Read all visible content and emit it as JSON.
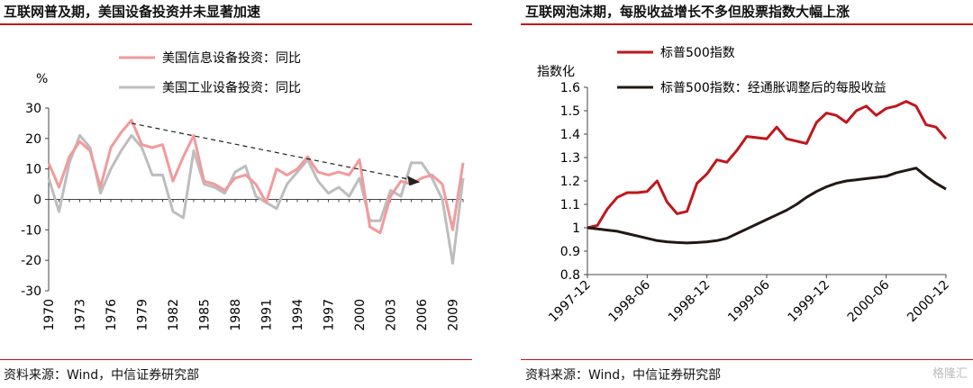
{
  "left": {
    "title": "互联网普及期，美国设备投资并未显著加速",
    "source": "资料来源：Wind，中信证券研究部"
  },
  "right": {
    "title": "互联网泡沫期，每股收益增长不多但股票指数大幅上涨",
    "source": "资料来源：Wind，中信证券研究部"
  },
  "watermark": "格隆汇",
  "colors": {
    "red": "#c0161c",
    "pink": "#f29a9c",
    "gray": "#bdbdbd",
    "dark": "#231815",
    "rule": "#c0161c"
  },
  "chart_data": [
    {
      "type": "line",
      "ylabel": "%",
      "ylim": [
        -30,
        30
      ],
      "yticks": [
        30,
        20,
        10,
        0,
        -10,
        -20,
        -30
      ],
      "xlim": [
        1970,
        2010
      ],
      "xticks": [
        "1970",
        "1973",
        "1976",
        "1979",
        "1982",
        "1985",
        "1988",
        "1991",
        "1994",
        "1997",
        "2000",
        "2003",
        "2006",
        "2009"
      ],
      "x": [
        1970,
        1971,
        1972,
        1973,
        1974,
        1975,
        1976,
        1977,
        1978,
        1979,
        1980,
        1981,
        1982,
        1983,
        1984,
        1985,
        1986,
        1987,
        1988,
        1989,
        1990,
        1991,
        1992,
        1993,
        1994,
        1995,
        1996,
        1997,
        1998,
        1999,
        2000,
        2001,
        2002,
        2003,
        2004,
        2005,
        2006,
        2007,
        2008,
        2009,
        2010
      ],
      "series": [
        {
          "name": "美国信息设备投资：同比",
          "color": "#f29a9c",
          "values": [
            12,
            4,
            14,
            19,
            16,
            4,
            17,
            22,
            26,
            18,
            17,
            18,
            6,
            14,
            21,
            6,
            5,
            3,
            7,
            8,
            5,
            -1,
            10,
            8,
            10,
            14,
            9,
            8,
            9,
            8,
            13,
            -9,
            -11,
            1,
            6,
            5,
            7,
            8,
            5,
            -10,
            12
          ]
        },
        {
          "name": "美国工业设备投资：同比",
          "color": "#bdbdbd",
          "values": [
            7,
            -4,
            12,
            21,
            17,
            2,
            10,
            16,
            21,
            17,
            8,
            8,
            -4,
            -6,
            16,
            5,
            4,
            2,
            9,
            11,
            1,
            -1,
            -3,
            5,
            9,
            13,
            6,
            2,
            4,
            1,
            7,
            -7,
            -7,
            3,
            1,
            12,
            12,
            7,
            0,
            -21,
            7
          ]
        }
      ],
      "annotation": {
        "type": "dashed-arrow",
        "from": [
          1978,
          25
        ],
        "to": [
          2005.5,
          6
        ]
      },
      "legend": "top-left"
    },
    {
      "type": "line",
      "ylabel": "指数化",
      "ylim": [
        0.8,
        1.6
      ],
      "yticks": [
        1.6,
        1.5,
        1.4,
        1.3,
        1.2,
        1.1,
        1,
        0.9,
        0.8
      ],
      "xticks": [
        "1997-12",
        "1998-06",
        "1998-12",
        "1999-06",
        "1999-12",
        "2000-06",
        "2000-12"
      ],
      "x_months": [
        "1997-12",
        "1998-01",
        "1998-02",
        "1998-03",
        "1998-04",
        "1998-05",
        "1998-06",
        "1998-07",
        "1998-08",
        "1998-09",
        "1998-10",
        "1998-11",
        "1998-12",
        "1999-01",
        "1999-02",
        "1999-03",
        "1999-04",
        "1999-05",
        "1999-06",
        "1999-07",
        "1999-08",
        "1999-09",
        "1999-10",
        "1999-11",
        "1999-12",
        "2000-01",
        "2000-02",
        "2000-03",
        "2000-04",
        "2000-05",
        "2000-06",
        "2000-07",
        "2000-08",
        "2000-09",
        "2000-10",
        "2000-11",
        "2000-12"
      ],
      "series": [
        {
          "name": "标普500指数",
          "color": "#c0161c",
          "values": [
            1.0,
            1.01,
            1.08,
            1.13,
            1.15,
            1.15,
            1.155,
            1.2,
            1.11,
            1.06,
            1.07,
            1.19,
            1.23,
            1.29,
            1.28,
            1.33,
            1.39,
            1.385,
            1.38,
            1.43,
            1.38,
            1.37,
            1.36,
            1.45,
            1.49,
            1.48,
            1.45,
            1.5,
            1.52,
            1.48,
            1.51,
            1.52,
            1.54,
            1.52,
            1.44,
            1.43,
            1.38
          ]
        },
        {
          "name": "标普500指数：经通胀调整后的每股收益",
          "color": "#231815",
          "values": [
            1.0,
            0.995,
            0.99,
            0.985,
            0.975,
            0.965,
            0.955,
            0.945,
            0.94,
            0.937,
            0.935,
            0.937,
            0.94,
            0.945,
            0.955,
            0.975,
            0.995,
            1.015,
            1.035,
            1.055,
            1.075,
            1.1,
            1.13,
            1.155,
            1.175,
            1.19,
            1.2,
            1.205,
            1.21,
            1.215,
            1.22,
            1.235,
            1.245,
            1.255,
            1.22,
            1.19,
            1.165
          ]
        }
      ],
      "legend": "top-left"
    }
  ]
}
